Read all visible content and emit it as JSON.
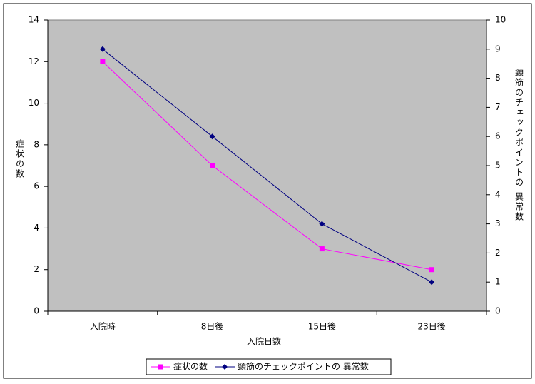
{
  "chart_data": {
    "type": "line",
    "categories": [
      "入院時",
      "8日後",
      "15日後",
      "23日後"
    ],
    "series": [
      {
        "name": "症状の数",
        "color": "#ff00ff",
        "values": [
          12,
          7,
          3,
          2
        ]
      },
      {
        "name": "頸筋のチェックポイントの 異常数",
        "color": "#000080",
        "values": [
          9,
          6,
          3,
          1
        ],
        "axis": "y2"
      }
    ],
    "x_label": "入院日数",
    "y_label": "症状の数",
    "y2_label": "頸筋のチェックポイントの 異常数",
    "ylim": [
      0,
      14
    ],
    "yticks": [
      0,
      2,
      4,
      6,
      8,
      10,
      12,
      14
    ],
    "y2lim": [
      0,
      10
    ],
    "y2ticks": [
      0,
      1,
      2,
      3,
      4,
      5,
      6,
      7,
      8,
      9,
      10
    ],
    "plot_background": "#c0c0c0",
    "legend": "bottom"
  }
}
